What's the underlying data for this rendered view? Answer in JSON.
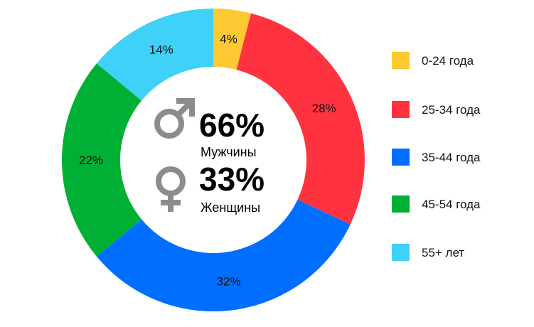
{
  "chart_data": {
    "type": "pie",
    "donut": true,
    "categories": [
      "0-24 года",
      "25-34 года",
      "35-44 года",
      "45-54 года",
      "55+ лет"
    ],
    "values": [
      4,
      28,
      32,
      22,
      14
    ],
    "value_labels": [
      "4%",
      "28%",
      "32%",
      "22%",
      "14%"
    ],
    "colors": [
      "#FFC933",
      "#FF333F",
      "#006FFF",
      "#00B035",
      "#3FD1F7"
    ],
    "legend_position": "right",
    "center": {
      "male": {
        "value": "66%",
        "label": "Мужчины",
        "icon": "male-symbol-icon"
      },
      "female": {
        "value": "33%",
        "label": "Женщины",
        "icon": "female-symbol-icon"
      }
    },
    "icon_color": "#8C8C8C"
  }
}
